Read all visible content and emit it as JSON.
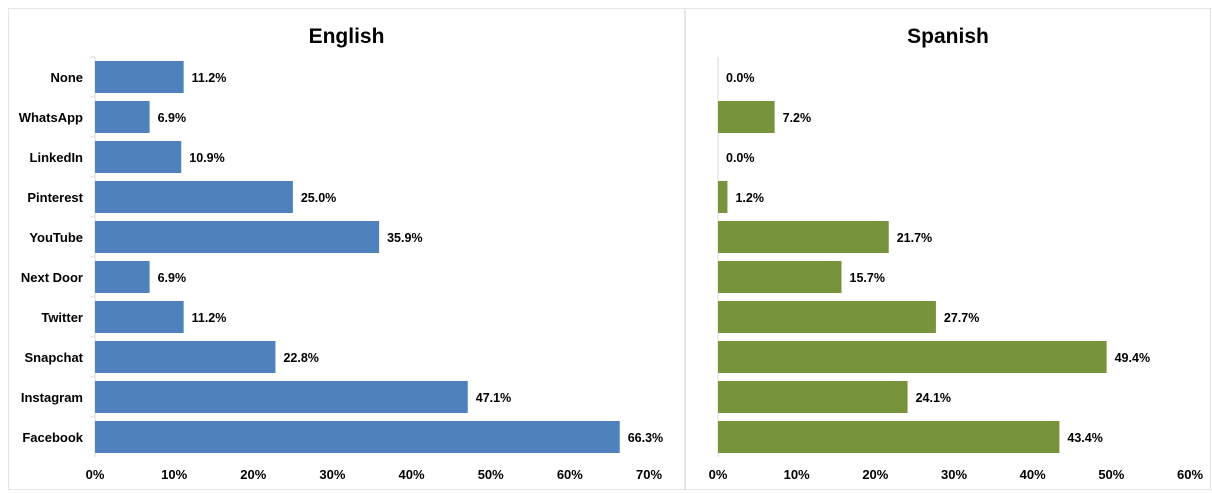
{
  "chart_data": [
    {
      "type": "bar",
      "orientation": "horizontal",
      "title": "English",
      "categories": [
        "None",
        "WhatsApp",
        "LinkedIn",
        "Pinterest",
        "YouTube",
        "Next Door",
        "Twitter",
        "Snapchat",
        "Instagram",
        "Facebook"
      ],
      "values": [
        11.2,
        6.9,
        10.9,
        25.0,
        35.9,
        6.9,
        11.2,
        22.8,
        47.1,
        66.3
      ],
      "value_labels": [
        "11.2%",
        "6.9%",
        "10.9%",
        "25.0%",
        "35.9%",
        "6.9%",
        "11.2%",
        "22.8%",
        "47.1%",
        "66.3%"
      ],
      "xlim": [
        0,
        70
      ],
      "xticks": [
        "0%",
        "10%",
        "20%",
        "30%",
        "40%",
        "50%",
        "60%",
        "70%"
      ],
      "color": "#4F81BD",
      "grid": false,
      "legend": false
    },
    {
      "type": "bar",
      "orientation": "horizontal",
      "title": "Spanish",
      "categories": [
        "None",
        "WhatsApp",
        "LinkedIn",
        "Pinterest",
        "YouTube",
        "Next Door",
        "Twitter",
        "Snapchat",
        "Instagram",
        "Facebook"
      ],
      "values": [
        0.0,
        7.2,
        0.0,
        1.2,
        21.7,
        15.7,
        27.7,
        49.4,
        24.1,
        43.4
      ],
      "value_labels": [
        "0.0%",
        "7.2%",
        "0.0%",
        "1.2%",
        "21.7%",
        "15.7%",
        "27.7%",
        "49.4%",
        "24.1%",
        "43.4%"
      ],
      "xlim": [
        0,
        60
      ],
      "xticks": [
        "0%",
        "10%",
        "20%",
        "30%",
        "40%",
        "50%",
        "60%"
      ],
      "color": "#77933C",
      "grid": false,
      "legend": false,
      "category_labels_shown": false
    }
  ]
}
